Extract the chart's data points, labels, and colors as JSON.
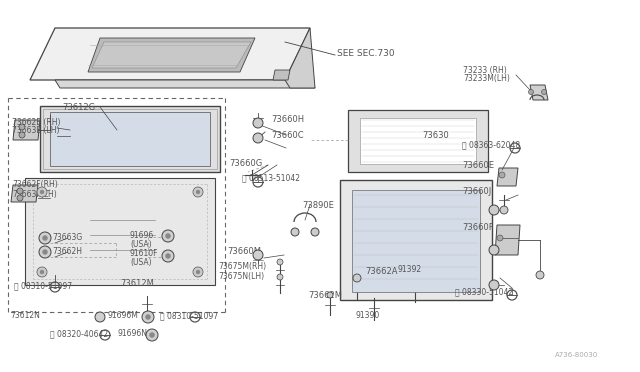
{
  "bg_color": "#ffffff",
  "line_color": "#444444",
  "text_color": "#555555",
  "gray_fill": "#e8e8e8",
  "dark_fill": "#cccccc",
  "diagram_ref": "A736-80030",
  "see_sec": "SEE SEC.730",
  "figsize": [
    6.4,
    3.72
  ],
  "dpi": 100,
  "xlim": [
    0,
    640
  ],
  "ylim": [
    0,
    372
  ]
}
